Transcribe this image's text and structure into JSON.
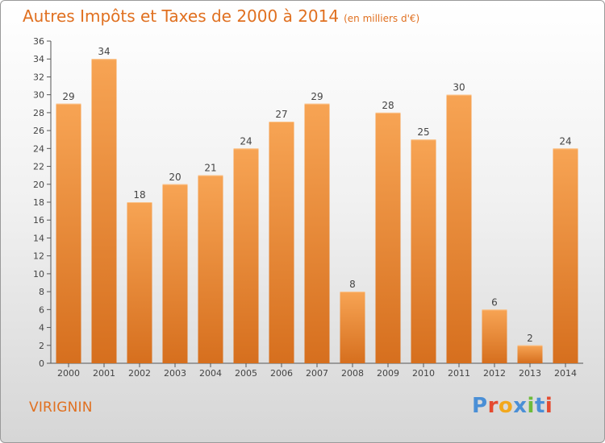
{
  "header": {
    "title": "Autres Impôts et Taxes de 2000 à 2014",
    "subtitle": "(en milliers d'€)"
  },
  "footer": {
    "commune": "VIRIGNIN",
    "logo_text": "Proxiti",
    "logo_colors": [
      "#4a8fd6",
      "#e54a2f",
      "#f2a81d",
      "#4a8fd6",
      "#6dbb3a",
      "#4a8fd6",
      "#e54a2f"
    ]
  },
  "colors": {
    "bar_top": "#f7a454",
    "bar_bottom": "#d66f1e",
    "title": "#e07020",
    "text": "#444444"
  },
  "chart_data": {
    "type": "bar",
    "categories": [
      "2000",
      "2001",
      "2002",
      "2003",
      "2004",
      "2005",
      "2006",
      "2007",
      "2008",
      "2009",
      "2010",
      "2011",
      "2012",
      "2013",
      "2014"
    ],
    "values": [
      29,
      34,
      18,
      20,
      21,
      24,
      27,
      29,
      8,
      28,
      25,
      30,
      6,
      2,
      24
    ],
    "title": "Autres Impôts et Taxes de 2000 à 2014",
    "subtitle": "(en milliers d'€)",
    "xlabel": "",
    "ylabel": "",
    "ylim": [
      0,
      36
    ],
    "yticks": [
      0,
      2,
      4,
      6,
      8,
      10,
      12,
      14,
      16,
      18,
      20,
      22,
      24,
      26,
      28,
      30,
      32,
      34,
      36
    ],
    "grid": false,
    "legend": "none"
  }
}
